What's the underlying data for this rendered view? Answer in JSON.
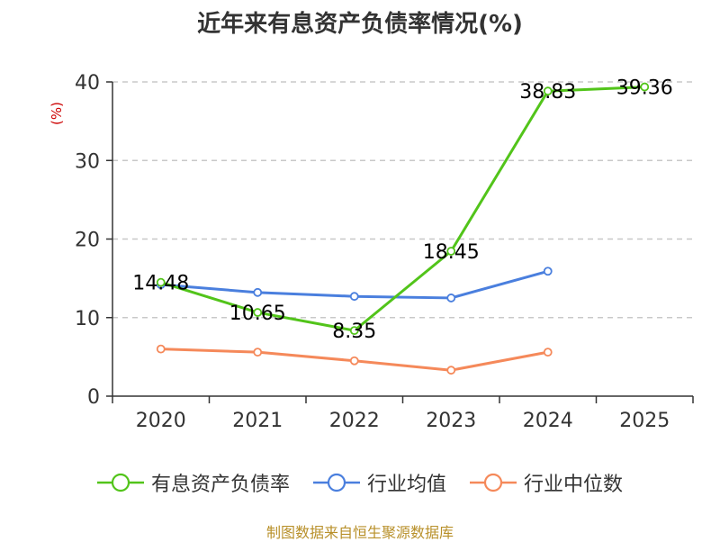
{
  "chart_data": {
    "type": "line",
    "title": "近年来有息资产负债率情况(%)",
    "ylabel": "(%)",
    "categories": [
      "2020",
      "2021",
      "2022",
      "2023",
      "2024",
      "2025"
    ],
    "ylim": [
      0,
      40
    ],
    "yticks": [
      0,
      10,
      20,
      30,
      40
    ],
    "grid": "horizontal-dashed",
    "legend_position": "bottom",
    "series": [
      {
        "name": "有息资产负债率",
        "color": "#52c41a",
        "labels": true,
        "values": [
          14.48,
          10.65,
          8.35,
          18.45,
          38.83,
          39.36
        ]
      },
      {
        "name": "行业均值",
        "color": "#4a7fde",
        "labels": false,
        "values": [
          14.2,
          13.2,
          12.7,
          12.5,
          15.9,
          null
        ]
      },
      {
        "name": "行业中位数",
        "color": "#f5895a",
        "labels": false,
        "values": [
          6.0,
          5.6,
          4.5,
          3.3,
          5.6,
          null
        ]
      }
    ]
  },
  "source_text": "制图数据来自恒生聚源数据库"
}
